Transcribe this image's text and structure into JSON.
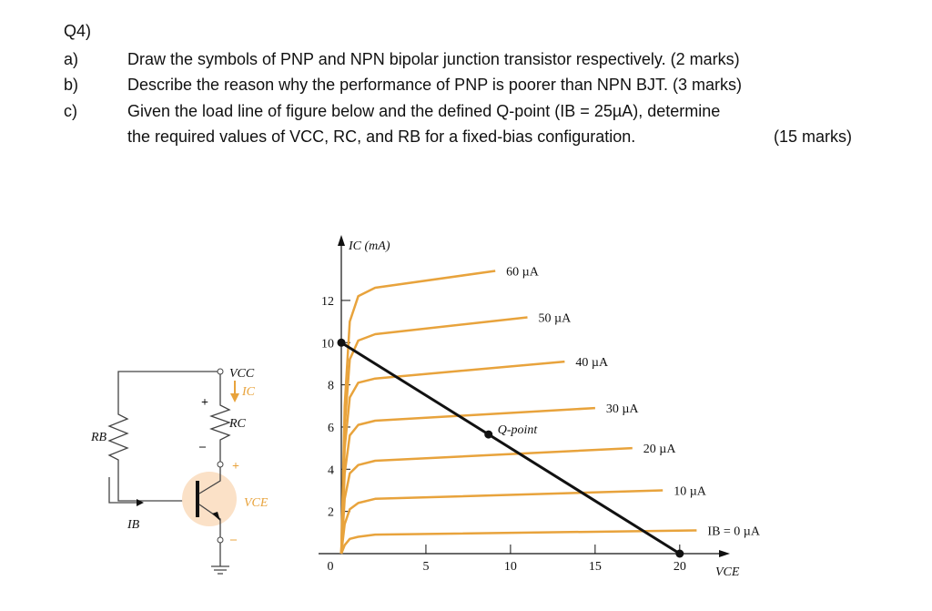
{
  "question": {
    "number": "Q4)",
    "parts": [
      {
        "label": "a)",
        "lines": [
          "Draw the symbols of PNP and NPN bipolar junction transistor respectively. (2 marks)"
        ]
      },
      {
        "label": "b)",
        "lines": [
          "Describe the reason why the performance of PNP is poorer than NPN BJT.  (3 marks)"
        ]
      },
      {
        "label": "c)",
        "lines": [
          "Given the load line of figure below and the defined Q-point (IB = 25µA), determine",
          "the required values of VCC, RC, and RB for a fixed-bias configuration."
        ],
        "marks": "(15 marks)"
      }
    ]
  },
  "circuit": {
    "vcc": "VCC",
    "ic": "IC",
    "rc": "RC",
    "rb": "RB",
    "ib": "IB",
    "vce": "VCE",
    "plus_rc": "+",
    "minus_rc": "–",
    "plus_vce": "+",
    "minus_vce": "–"
  },
  "chart_data": {
    "type": "line",
    "x_label": "VCE",
    "y_label": "IC (mA)",
    "xlim": [
      0,
      22
    ],
    "ylim": [
      0,
      14.5
    ],
    "xticks": [
      0,
      5,
      10,
      15,
      20
    ],
    "yticks": [
      2,
      4,
      6,
      8,
      10,
      12
    ],
    "series": [
      {
        "name": "60 µA",
        "color": "#e8a33c",
        "x": [
          0,
          0.2,
          0.5,
          1,
          2,
          9.1
        ],
        "values": [
          0,
          7,
          11,
          12.2,
          12.6,
          13.4
        ]
      },
      {
        "name": "50 µA",
        "color": "#e8a33c",
        "x": [
          0,
          0.2,
          0.5,
          1,
          2,
          11
        ],
        "values": [
          0,
          6,
          9.2,
          10.1,
          10.4,
          11.2
        ]
      },
      {
        "name": "40 µA",
        "color": "#e8a33c",
        "x": [
          0,
          0.2,
          0.5,
          1,
          2,
          13.2
        ],
        "values": [
          0,
          5,
          7.4,
          8.1,
          8.3,
          9.1
        ]
      },
      {
        "name": "30 µA",
        "color": "#e8a33c",
        "x": [
          0,
          0.2,
          0.5,
          1,
          2,
          15
        ],
        "values": [
          0,
          3.8,
          5.6,
          6.1,
          6.3,
          6.9
        ]
      },
      {
        "name": "20 µA",
        "color": "#e8a33c",
        "x": [
          0,
          0.2,
          0.5,
          1,
          2,
          17.2
        ],
        "values": [
          0,
          2.6,
          3.8,
          4.2,
          4.4,
          5
        ]
      },
      {
        "name": "10 µA",
        "color": "#e8a33c",
        "x": [
          0,
          0.2,
          0.5,
          1,
          2,
          19
        ],
        "values": [
          0,
          1.4,
          2.1,
          2.4,
          2.6,
          3
        ]
      },
      {
        "name": "IB = 0 µA",
        "color": "#e8a33c",
        "x": [
          0,
          0.2,
          0.5,
          1,
          2,
          21
        ],
        "values": [
          0,
          0.4,
          0.7,
          0.8,
          0.9,
          1.1
        ]
      }
    ],
    "load_line": {
      "color": "#111111",
      "x": [
        0,
        20
      ],
      "values": [
        10,
        0
      ]
    },
    "q_point": {
      "label": "Q-point",
      "x": 8.7,
      "value": 5.65
    }
  }
}
